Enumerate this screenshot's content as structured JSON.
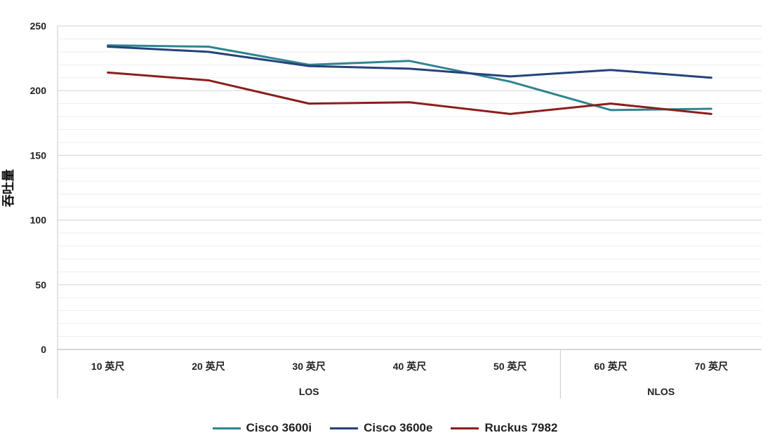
{
  "chart_data": {
    "type": "line",
    "title": "",
    "xlabel": "",
    "ylabel": "吞吐量",
    "ylim": [
      0,
      250
    ],
    "yticks": [
      0,
      50,
      100,
      150,
      200,
      250
    ],
    "categories": [
      "10 英尺",
      "20 英尺",
      "30 英尺",
      "40 英尺",
      "50 英尺",
      "60 英尺",
      "70 英尺"
    ],
    "groups": [
      {
        "label": "LOS",
        "span": [
          0,
          4
        ]
      },
      {
        "label": "NLOS",
        "span": [
          5,
          6
        ]
      }
    ],
    "grid": true,
    "legend_position": "bottom",
    "series": [
      {
        "name": "Cisco 3600i",
        "color": "#2f8490",
        "values": [
          235,
          234,
          220,
          223,
          207,
          185,
          186
        ]
      },
      {
        "name": "Cisco 3600e",
        "color": "#25427a",
        "values": [
          234,
          230,
          219,
          217,
          211,
          216,
          210
        ]
      },
      {
        "name": "Ruckus 7982",
        "color": "#8b1e1c",
        "values": [
          214,
          208,
          190,
          191,
          182,
          190,
          182
        ]
      }
    ]
  }
}
